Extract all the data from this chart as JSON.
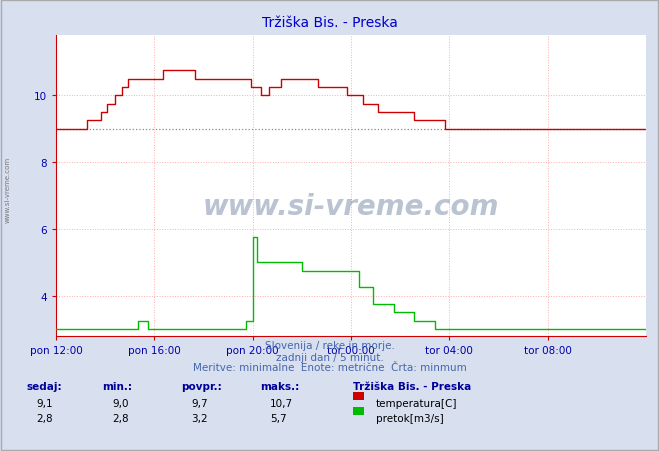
{
  "title": "Tržiška Bis. - Preska",
  "title_color": "#0000cc",
  "bg_color": "#d8e0f0",
  "plot_bg_color": "#ffffff",
  "grid_color": "#ffaaaa",
  "grid_style": ":",
  "xlim": [
    0,
    288
  ],
  "ylim": [
    2.8,
    11.8
  ],
  "yticks": [
    4,
    6,
    8,
    10
  ],
  "xtick_labels": [
    "pon 12:00",
    "pon 16:00",
    "pon 20:00",
    "tor 00:00",
    "tor 04:00",
    "tor 08:00"
  ],
  "xtick_positions": [
    0,
    48,
    96,
    144,
    192,
    240
  ],
  "temp_color": "#cc0000",
  "flow_color": "#00bb00",
  "avg_line_color": "#888888",
  "avg_temp": 9.0,
  "watermark": "www.si-vreme.com",
  "watermark_color": "#1a3a6b",
  "subtitle1": "Slovenija / reke in morje.",
  "subtitle2": "zadnji dan / 5 minut.",
  "subtitle3": "Meritve: minimalne  Enote: metrične  Črta: minmum",
  "subtitle_color": "#4466aa",
  "table_headers": [
    "sedaj:",
    "min.:",
    "povpr.:",
    "maks.:"
  ],
  "table_header_color": "#000099",
  "table_data_color": "#000000",
  "legend_title": "Tržiška Bis. - Preska",
  "legend_temp_label": "temperatura[C]",
  "legend_flow_label": "pretok[m3/s]",
  "temp_sedaj": "9,1",
  "temp_min": "9,0",
  "temp_povpr": "9,7",
  "temp_maks": "10,7",
  "flow_sedaj": "2,8",
  "flow_min": "2,8",
  "flow_povpr": "3,2",
  "flow_maks": "5,7",
  "axis_color": "#cc0000",
  "tick_color": "#0000aa",
  "border_color": "#aaaaaa"
}
